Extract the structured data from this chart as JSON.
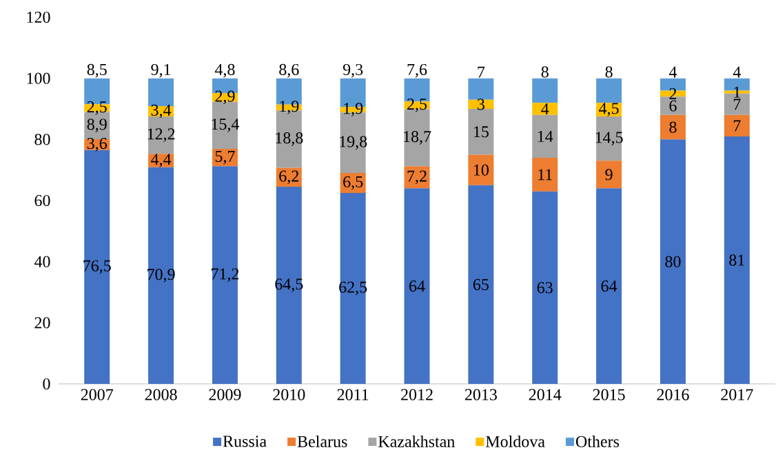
{
  "chart_data": {
    "type": "bar",
    "stacked": true,
    "categories": [
      "2007",
      "2008",
      "2009",
      "2010",
      "2011",
      "2012",
      "2013",
      "2014",
      "2015",
      "2016",
      "2017"
    ],
    "ylim": [
      0,
      120
    ],
    "yticks": [
      0,
      20,
      40,
      60,
      80,
      100,
      120
    ],
    "legend": "bottom",
    "series": [
      {
        "name": "Russia",
        "color": "#4472c4",
        "values": [
          76.5,
          70.9,
          71.2,
          64.5,
          62.5,
          64,
          65,
          63,
          64,
          80,
          81
        ],
        "value_labels": [
          "76,5",
          "70,9",
          "71,2",
          "64,5",
          "62,5",
          "64",
          "65",
          "63",
          "64",
          "80",
          "81"
        ]
      },
      {
        "name": "Belarus",
        "color": "#ed7d31",
        "values": [
          3.6,
          4.4,
          5.7,
          6.2,
          6.5,
          7.2,
          10,
          11,
          9,
          8,
          7
        ],
        "value_labels": [
          "3,6",
          "4,4",
          "5,7",
          "6,2",
          "6,5",
          "7,2",
          "10",
          "11",
          "9",
          "8",
          "7"
        ]
      },
      {
        "name": "Kazakhstan",
        "color": "#a5a5a5",
        "values": [
          8.9,
          12.2,
          15.4,
          18.8,
          19.8,
          18.7,
          15,
          14,
          14.5,
          6,
          7
        ],
        "value_labels": [
          "8,9",
          "12,2",
          "15,4",
          "18,8",
          "19,8",
          "18,7",
          "15",
          "14",
          "14,5",
          "6",
          "7"
        ]
      },
      {
        "name": "Moldova",
        "color": "#ffc000",
        "values": [
          2.5,
          3.4,
          2.9,
          1.9,
          1.9,
          2.5,
          3,
          4,
          4.5,
          2,
          1
        ],
        "value_labels": [
          "2,5",
          "3,4",
          "2,9",
          "1,9",
          "1,9",
          "2,5",
          "3",
          "4",
          "4,5",
          "2",
          "1"
        ]
      },
      {
        "name": "Others",
        "color": "#5b9bd5",
        "values": [
          8.5,
          9.1,
          4.8,
          8.6,
          9.3,
          7.6,
          7,
          8,
          8,
          4,
          4
        ],
        "value_labels": [
          "8,5",
          "9,1",
          "4,8",
          "8,6",
          "9,3",
          "7,6",
          "7",
          "8",
          "8",
          "4",
          "4"
        ]
      }
    ]
  }
}
